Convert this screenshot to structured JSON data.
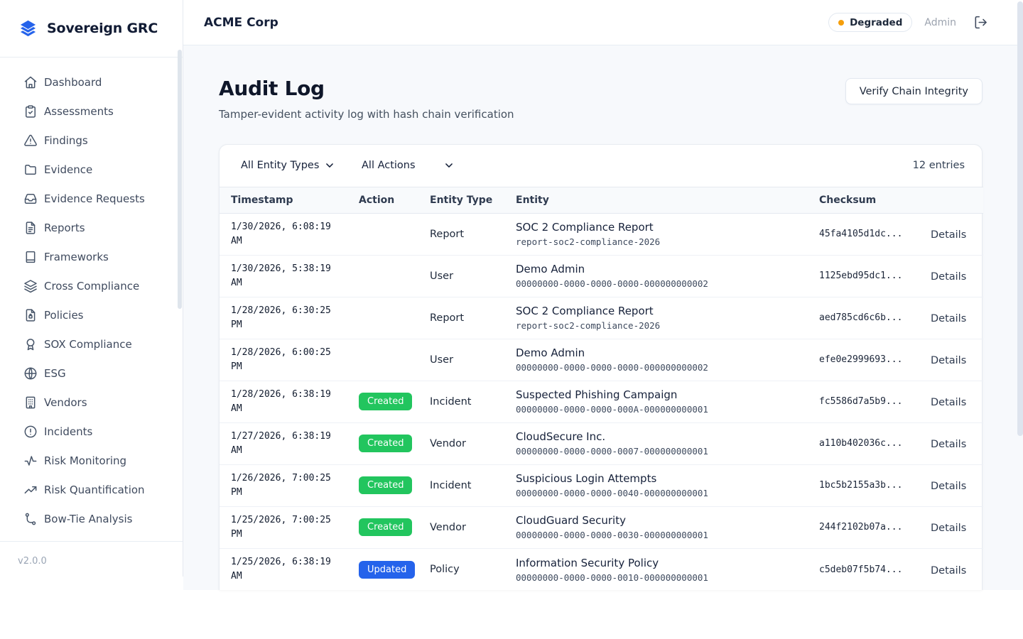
{
  "sidebar": {
    "logo_text": "Sovereign GRC",
    "version": "v2.0.0",
    "items": [
      {
        "label": "Dashboard",
        "icon": "home-icon"
      },
      {
        "label": "Assessments",
        "icon": "clipboard-check-icon"
      },
      {
        "label": "Findings",
        "icon": "alert-triangle-icon"
      },
      {
        "label": "Evidence",
        "icon": "folder-icon"
      },
      {
        "label": "Evidence Requests",
        "icon": "inbox-icon"
      },
      {
        "label": "Reports",
        "icon": "file-text-icon"
      },
      {
        "label": "Frameworks",
        "icon": "book-icon"
      },
      {
        "label": "Cross Compliance",
        "icon": "layers-icon"
      },
      {
        "label": "Policies",
        "icon": "file-lock-icon"
      },
      {
        "label": "SOX Compliance",
        "icon": "award-icon"
      },
      {
        "label": "ESG",
        "icon": "globe-icon"
      },
      {
        "label": "Vendors",
        "icon": "building-icon"
      },
      {
        "label": "Incidents",
        "icon": "alert-circle-icon"
      },
      {
        "label": "Risk Monitoring",
        "icon": "activity-icon"
      },
      {
        "label": "Risk Quantification",
        "icon": "trending-up-icon"
      },
      {
        "label": "Bow-Tie Analysis",
        "icon": "workflow-icon"
      }
    ]
  },
  "header": {
    "org_name": "ACME Corp",
    "status_badge": {
      "label": "Degraded",
      "dot_color": "#f59e0b"
    },
    "user_role": "Admin"
  },
  "page": {
    "title": "Audit Log",
    "subtitle": "Tamper-evident activity log with hash chain verification",
    "verify_button": "Verify Chain Integrity"
  },
  "filters": {
    "entity_type_selected": "All Entity Types",
    "action_selected": "All Actions",
    "entries_count": "12 entries"
  },
  "table": {
    "columns": {
      "timestamp": "Timestamp",
      "action": "Action",
      "entity_type": "Entity Type",
      "entity": "Entity",
      "checksum": "Checksum"
    },
    "details_label": "Details",
    "action_colors": {
      "Created": "#22c55e",
      "Updated": "#2563eb"
    },
    "rows": [
      {
        "timestamp": "1/30/2026, 6:08:19 AM",
        "action": "",
        "entity_type": "Report",
        "entity_name": "SOC 2 Compliance Report",
        "entity_id": "report-soc2-compliance-2026",
        "checksum": "45fa4105d1dc..."
      },
      {
        "timestamp": "1/30/2026, 5:38:19 AM",
        "action": "",
        "entity_type": "User",
        "entity_name": "Demo Admin",
        "entity_id": "00000000-0000-0000-0000-000000000002",
        "checksum": "1125ebd95dc1..."
      },
      {
        "timestamp": "1/28/2026, 6:30:25 PM",
        "action": "",
        "entity_type": "Report",
        "entity_name": "SOC 2 Compliance Report",
        "entity_id": "report-soc2-compliance-2026",
        "checksum": "aed785cd6c6b..."
      },
      {
        "timestamp": "1/28/2026, 6:00:25 PM",
        "action": "",
        "entity_type": "User",
        "entity_name": "Demo Admin",
        "entity_id": "00000000-0000-0000-0000-000000000002",
        "checksum": "efe0e2999693..."
      },
      {
        "timestamp": "1/28/2026, 6:38:19 AM",
        "action": "Created",
        "entity_type": "Incident",
        "entity_name": "Suspected Phishing Campaign",
        "entity_id": "00000000-0000-0000-000A-000000000001",
        "checksum": "fc5586d7a5b9..."
      },
      {
        "timestamp": "1/27/2026, 6:38:19 AM",
        "action": "Created",
        "entity_type": "Vendor",
        "entity_name": "CloudSecure Inc.",
        "entity_id": "00000000-0000-0000-0007-000000000001",
        "checksum": "a110b402036c..."
      },
      {
        "timestamp": "1/26/2026, 7:00:25 PM",
        "action": "Created",
        "entity_type": "Incident",
        "entity_name": "Suspicious Login Attempts",
        "entity_id": "00000000-0000-0000-0040-000000000001",
        "checksum": "1bc5b2155a3b..."
      },
      {
        "timestamp": "1/25/2026, 7:00:25 PM",
        "action": "Created",
        "entity_type": "Vendor",
        "entity_name": "CloudGuard Security",
        "entity_id": "00000000-0000-0000-0030-000000000001",
        "checksum": "244f2102b07a..."
      },
      {
        "timestamp": "1/25/2026, 6:38:19 AM",
        "action": "Updated",
        "entity_type": "Policy",
        "entity_name": "Information Security Policy",
        "entity_id": "00000000-0000-0000-0010-000000000001",
        "checksum": "c5deb07f5b74..."
      }
    ]
  },
  "colors": {
    "brand_blue": "#2563eb",
    "created_green": "#22c55e",
    "updated_blue": "#2563eb",
    "degraded_orange": "#f59e0b"
  }
}
